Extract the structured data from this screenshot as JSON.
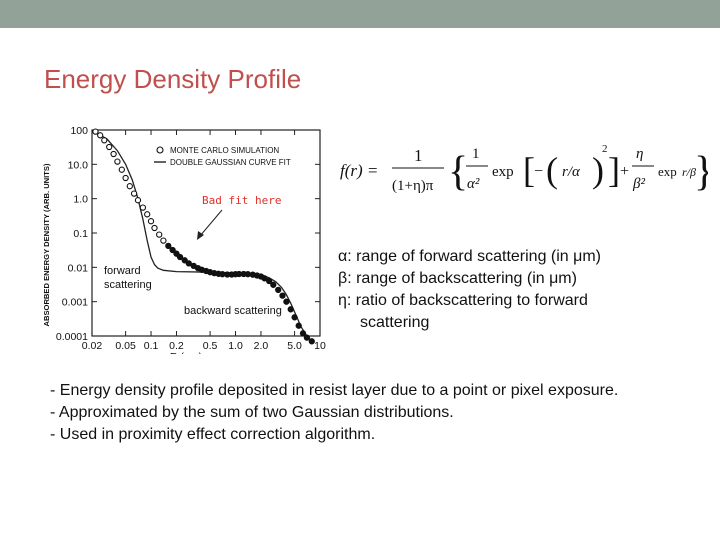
{
  "slide": {
    "title": "Energy Density Profile",
    "colors": {
      "topbar": "#93a299",
      "title": "#c0504d"
    }
  },
  "formula": {
    "lhs": "f(r) =",
    "numerator": "1",
    "denominator": "(1+η)π",
    "term1_coef_num": "1",
    "term1_coef_den": "α²",
    "term1_arg": "r/α",
    "term2_coef_num": "η",
    "term2_coef_den": "β²",
    "term2_arg": "r/β",
    "exp": "exp",
    "plus": "+"
  },
  "definitions": [
    "α: range of forward scattering (in μm)",
    "β: range of backscattering (in μm)",
    "η: ratio of backscattering to forward",
    "scattering"
  ],
  "bullets": [
    "- Energy density profile deposited in resist layer due to a point or pixel exposure.",
    "- Approximated by the sum of two Gaussian distributions.",
    "- Used in proximity effect correction algorithm."
  ],
  "chart_data": {
    "type": "scatter",
    "xlabel": "R (μm)",
    "ylabel": "ABSORBED ENERGY DENSITY (ARB. UNITS)",
    "xscale": "log",
    "yscale": "log",
    "xlim": [
      0.02,
      10
    ],
    "ylim": [
      0.0001,
      100
    ],
    "x_ticks": [
      "0.02",
      "0.05",
      "0.1",
      "0.2",
      "0.5",
      "1.0",
      "2.0",
      "5.0",
      "10"
    ],
    "x_tick_values": [
      0.02,
      0.05,
      0.1,
      0.2,
      0.5,
      1.0,
      2.0,
      5.0,
      10
    ],
    "y_ticks": [
      "100",
      "10.0",
      "1.0",
      "0.1",
      "0.01",
      "0.001",
      "0.0001"
    ],
    "y_tick_values": [
      100,
      10,
      1,
      0.1,
      0.01,
      0.001,
      0.0001
    ],
    "legend": {
      "position": "top-right",
      "entries": [
        "MONTE CARLO SIMULATION",
        "DOUBLE GAUSSIAN CURVE FIT"
      ]
    },
    "series": [
      {
        "name": "MONTE CARLO SIMULATION",
        "style": "open-circles",
        "x": [
          0.022,
          0.025,
          0.028,
          0.032,
          0.036,
          0.04,
          0.045,
          0.05,
          0.056,
          0.063,
          0.07,
          0.08,
          0.09,
          0.1,
          0.11,
          0.125,
          0.14,
          0.16,
          0.18,
          0.2,
          0.22,
          0.25,
          0.28,
          0.32,
          0.36,
          0.4,
          0.45,
          0.5,
          0.56,
          0.63,
          0.7,
          0.8,
          0.9,
          1.0,
          1.1,
          1.25,
          1.4,
          1.6,
          1.8,
          2.0,
          2.2,
          2.5,
          2.8,
          3.2,
          3.6,
          4.0,
          4.5,
          5.0,
          5.6,
          6.3,
          7.0,
          8.0
        ],
        "y": [
          90,
          70,
          50,
          32,
          20,
          12,
          7,
          4,
          2.3,
          1.4,
          0.9,
          0.55,
          0.35,
          0.22,
          0.14,
          0.09,
          0.06,
          0.042,
          0.032,
          0.025,
          0.02,
          0.016,
          0.013,
          0.011,
          0.0095,
          0.0085,
          0.0078,
          0.0072,
          0.0068,
          0.0065,
          0.0063,
          0.0062,
          0.0062,
          0.0063,
          0.0064,
          0.0064,
          0.0063,
          0.0061,
          0.0058,
          0.0054,
          0.0048,
          0.004,
          0.0031,
          0.0022,
          0.0015,
          0.001,
          0.0006,
          0.00035,
          0.0002,
          0.00012,
          9e-05,
          7e-05
        ]
      },
      {
        "name": "DOUBLE GAUSSIAN CURVE FIT",
        "style": "line",
        "x": [
          0.02,
          0.03,
          0.04,
          0.05,
          0.06,
          0.07,
          0.08,
          0.09,
          0.1,
          0.11,
          0.12,
          0.14,
          0.2,
          0.5,
          1.0,
          1.5,
          2.0,
          2.5,
          3.0,
          3.5,
          4.0,
          4.5,
          5.0,
          6.0,
          7.0,
          8.0
        ],
        "y": [
          95,
          55,
          25,
          10,
          3.5,
          1.0,
          0.25,
          0.06,
          0.02,
          0.012,
          0.0095,
          0.0082,
          0.0075,
          0.0072,
          0.0069,
          0.0066,
          0.006,
          0.005,
          0.0038,
          0.0026,
          0.0016,
          0.0009,
          0.0005,
          0.00018,
          0.0001,
          7e-05
        ]
      }
    ],
    "annotations": [
      {
        "text": "Bad fit here",
        "color": "#e0302a"
      },
      {
        "text": "forward\nscattering"
      },
      {
        "text": "backward scattering"
      }
    ]
  }
}
